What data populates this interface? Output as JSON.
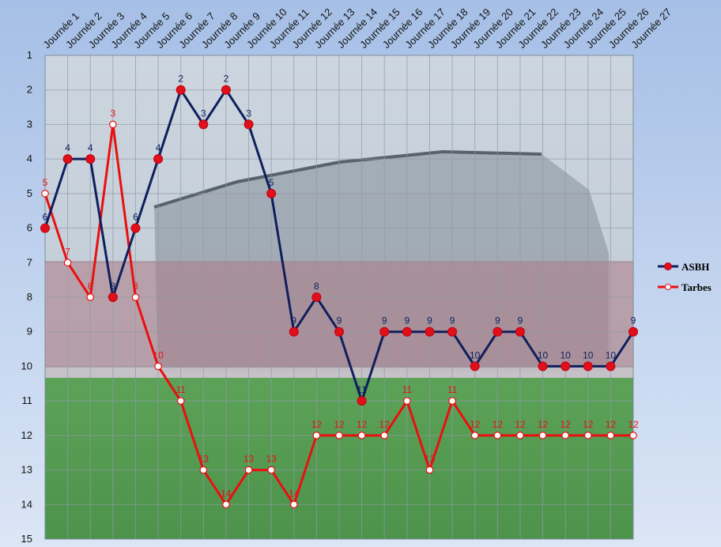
{
  "chart_data": {
    "type": "line",
    "categories": [
      "Journée 1",
      "Journée 2",
      "Journée 3",
      "Journée 4",
      "Journée 5",
      "Journée 6",
      "Journée 7",
      "Journée 8",
      "Journée 9",
      "Journée 10",
      "Journée 11",
      "Journée 12",
      "Journée 13",
      "Journée 14",
      "Journée 15",
      "Journée 16",
      "Journée 17",
      "Journée 18",
      "Journée 19",
      "Journée 20",
      "Journée 21",
      "Journée 22",
      "Journée 23",
      "Journée 24",
      "Journée 25",
      "Journée 26",
      "Journée 27"
    ],
    "y_ticks": [
      "1",
      "2",
      "3",
      "4",
      "5",
      "6",
      "7",
      "8",
      "9",
      "10",
      "11",
      "12",
      "13",
      "14",
      "15"
    ],
    "ylim": [
      1,
      15
    ],
    "y_inverted": true,
    "grid": true,
    "legend_position": "right",
    "series": [
      {
        "name": "ASBH",
        "color": "#0f1f5c",
        "marker_color": "#e0101a",
        "label_color": "#0f1f5c",
        "values": [
          6,
          4,
          4,
          8,
          6,
          4,
          2,
          3,
          2,
          3,
          5,
          9,
          8,
          9,
          11,
          9,
          9,
          9,
          9,
          10,
          9,
          9,
          10,
          10,
          10,
          10,
          9
        ]
      },
      {
        "name": "Tarbes",
        "color": "#e81010",
        "marker_color": "#ffffff",
        "label_color": "#e81010",
        "values": [
          5,
          7,
          8,
          3,
          8,
          10,
          11,
          13,
          14,
          13,
          13,
          14,
          12,
          12,
          12,
          12,
          11,
          13,
          11,
          12,
          12,
          12,
          12,
          12,
          12,
          12,
          12
        ]
      }
    ]
  }
}
